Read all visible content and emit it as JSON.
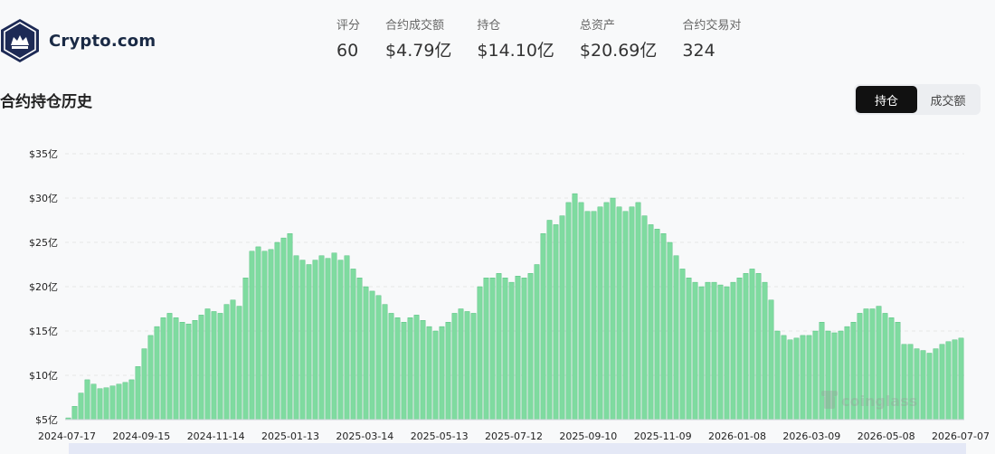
{
  "brand": {
    "name": "Crypto.com",
    "logo_icon": "crypto-com-lion-logo-icon"
  },
  "stats": [
    {
      "label": "评分",
      "value": "60"
    },
    {
      "label": "合约成交额",
      "value": "$4.79亿"
    },
    {
      "label": "持仓",
      "value": "$14.10亿"
    },
    {
      "label": "总资产",
      "value": "$20.69亿"
    },
    {
      "label": "合约交易对",
      "value": "324"
    }
  ],
  "section": {
    "title": "合约持仓历史"
  },
  "toggle": {
    "options": [
      "持仓",
      "成交额"
    ],
    "active": "持仓"
  },
  "watermark": "coinglass",
  "colors": {
    "bar_fill": "#7fdba0",
    "bar_stroke": "#45b873",
    "grid": "#e6e6e6"
  },
  "chart_data": {
    "type": "bar",
    "ylabel": "",
    "ylim": [
      5,
      35
    ],
    "y_ticks": [
      "$5亿",
      "$10亿",
      "$15亿",
      "$20亿",
      "$25亿",
      "$30亿",
      "$35亿"
    ],
    "x_ticks": [
      "2024-07-17",
      "2024-09-15",
      "2024-11-14",
      "2025-01-13",
      "2025-03-14",
      "2025-05-13",
      "2025-07-12",
      "2025-09-10",
      "2025-11-09",
      "2026-01-08",
      "2026-03-09",
      "2026-05-08",
      "2026-07-07"
    ],
    "series": [
      {
        "values": [
          5.2,
          6.5,
          8.0,
          9.5,
          9.0,
          8.5,
          8.6,
          8.8,
          9.0,
          9.2,
          9.5,
          11.0,
          13.0,
          14.5,
          15.5,
          16.5,
          17.0,
          16.5,
          16.0,
          15.8,
          16.2,
          16.8,
          17.5,
          17.2,
          17.0,
          18.0,
          18.5,
          17.8,
          21.0,
          24.0,
          24.5,
          24.0,
          24.2,
          25.0,
          25.5,
          26.0,
          23.5,
          23.0,
          22.5,
          23.0,
          23.5,
          23.2,
          23.8,
          23.0,
          23.5,
          22.0,
          21.0,
          20.0,
          19.5,
          19.0,
          18.0,
          17.0,
          16.5,
          16.0,
          16.5,
          16.8,
          16.2,
          15.5,
          15.0,
          15.5,
          16.0,
          17.0,
          17.5,
          17.2,
          17.0,
          20.0,
          21.0,
          21.0,
          21.5,
          21.0,
          20.5,
          21.2,
          21.0,
          21.5,
          22.5,
          26.0,
          27.5,
          27.0,
          28.0,
          29.5,
          30.5,
          29.5,
          28.5,
          28.5,
          29.0,
          29.5,
          30.0,
          29.0,
          28.5,
          29.0,
          29.5,
          28.0,
          27.0,
          26.5,
          26.0,
          25.0,
          23.5,
          22.0,
          21.0,
          20.5,
          20.0,
          20.5,
          20.5,
          20.2,
          20.0,
          20.5,
          21.0,
          21.5,
          22.0,
          21.5,
          20.5,
          18.5,
          15.0,
          14.5,
          14.0,
          14.2,
          14.5,
          14.5,
          15.0,
          16.0,
          15.0,
          14.8,
          15.0,
          15.5,
          16.0,
          17.0,
          17.5,
          17.5,
          17.8,
          17.0,
          16.5,
          16.0,
          13.5,
          13.5,
          13.0,
          12.8,
          12.5,
          13.0,
          13.5,
          13.8,
          14.0,
          14.2
        ]
      }
    ]
  }
}
